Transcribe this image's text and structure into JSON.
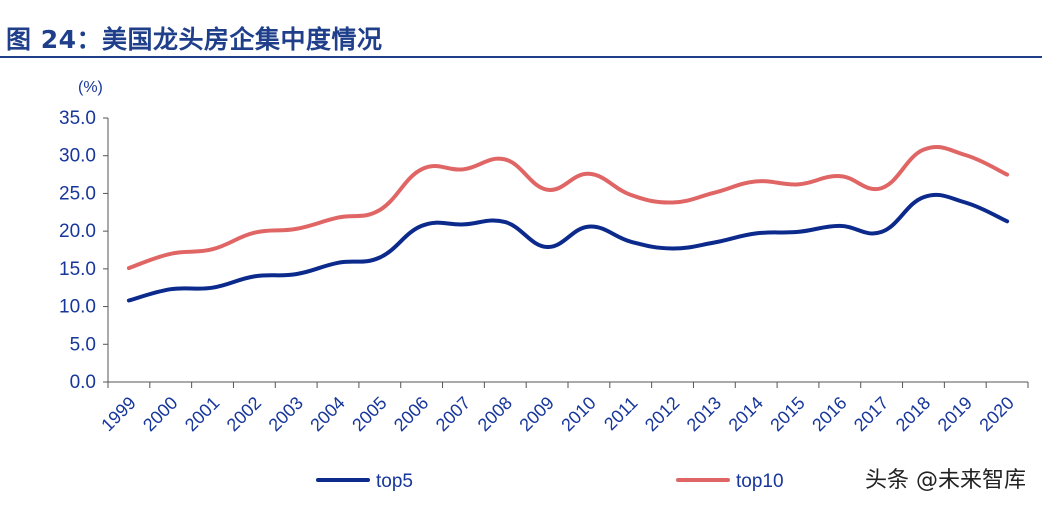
{
  "title": "图 24：美国龙头房企集中度情况",
  "watermark": "头条 @未来智库",
  "colors": {
    "title": "#1f3f8a",
    "axis_text": "#17369b",
    "top5": "#0b2a8c",
    "top10": "#e06666"
  },
  "chart_data": {
    "type": "line",
    "title": "",
    "ylabel": "(%)",
    "xlabel": "",
    "ylim": [
      0,
      35
    ],
    "yticks": [
      "0.0",
      "5.0",
      "10.0",
      "15.0",
      "20.0",
      "25.0",
      "30.0",
      "35.0"
    ],
    "grid": false,
    "legend_position": "bottom",
    "categories": [
      "1999",
      "2000",
      "2001",
      "2002",
      "2003",
      "2004",
      "2005",
      "2006",
      "2007",
      "2008",
      "2009",
      "2010",
      "2011",
      "2012",
      "2013",
      "2014",
      "2015",
      "2016",
      "2017",
      "2018",
      "2019",
      "2020"
    ],
    "series": [
      {
        "name": "top5",
        "color": "#0b2a8c",
        "values": [
          10.8,
          12.3,
          12.5,
          14.0,
          14.3,
          15.8,
          16.5,
          20.7,
          20.9,
          21.2,
          17.9,
          20.6,
          18.6,
          17.7,
          18.5,
          19.7,
          19.9,
          20.7,
          19.9,
          24.5,
          23.8,
          21.3
        ]
      },
      {
        "name": "top10",
        "color": "#e06666",
        "values": [
          15.1,
          17.0,
          17.6,
          19.8,
          20.3,
          21.8,
          22.8,
          28.2,
          28.2,
          29.5,
          25.5,
          27.6,
          24.8,
          23.8,
          25.1,
          26.6,
          26.2,
          27.3,
          25.7,
          30.8,
          30.1,
          27.5
        ]
      }
    ]
  }
}
